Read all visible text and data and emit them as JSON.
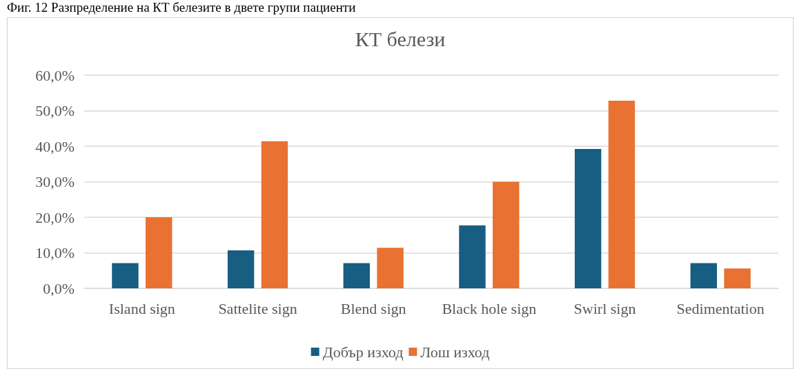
{
  "chart_data": {
    "type": "bar",
    "title": "КТ белези",
    "annotations": [
      "Фиг. 12 Разпределение на КТ белезите в двете групи пациенти"
    ],
    "categories": [
      "Island sign",
      "Sattelite sign",
      "Blend sign",
      "Black hole sign",
      "Swirl sign",
      "Sedimentation"
    ],
    "series": [
      {
        "name": "Добър изход",
        "color": "#175e82",
        "values": [
          7.1,
          10.7,
          7.1,
          17.7,
          39.2,
          7.1
        ]
      },
      {
        "name": "Лош изход",
        "color": "#e97132",
        "values": [
          20.0,
          41.4,
          11.4,
          30.0,
          52.8,
          5.6
        ]
      }
    ],
    "ylim": [
      0,
      60
    ],
    "yticks": [
      {
        "value": 0,
        "label": "0,0%"
      },
      {
        "value": 10,
        "label": "10,0%"
      },
      {
        "value": 20,
        "label": "20,0%"
      },
      {
        "value": 30,
        "label": "30,0%"
      },
      {
        "value": 40,
        "label": "40,0%"
      },
      {
        "value": 50,
        "label": "50,0%"
      },
      {
        "value": 60,
        "label": "60,0%"
      }
    ],
    "grid": "y",
    "legend": "bottom"
  }
}
